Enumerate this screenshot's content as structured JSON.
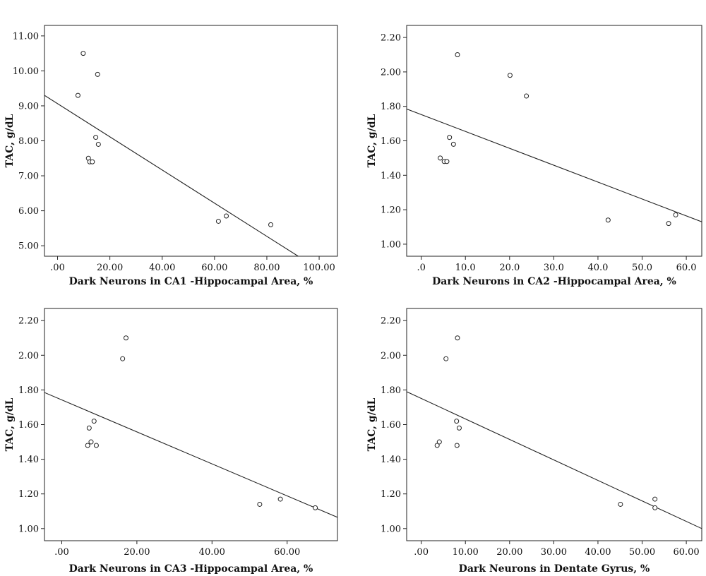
{
  "chart_data": [
    {
      "type": "scatter",
      "xlabel": "Dark Neurons in CA1 -Hippocampal Area, %",
      "ylabel": "TAC, g/dL",
      "xlim": [
        -5,
        107
      ],
      "ylim": [
        4.7,
        11.3
      ],
      "xticks": [
        0,
        20,
        40,
        60,
        80,
        100
      ],
      "xtick_labels": [
        ".00",
        "20.00",
        "40.00",
        "60.00",
        "80.00",
        "100.00"
      ],
      "yticks": [
        5,
        6,
        7,
        8,
        9,
        10,
        11
      ],
      "ytick_labels": [
        "5.00",
        "6.00",
        "7.00",
        "8.00",
        "9.00",
        "10.00",
        "11.00"
      ],
      "points": [
        {
          "x": 7.8,
          "y": 9.3
        },
        {
          "x": 9.8,
          "y": 10.5
        },
        {
          "x": 11.8,
          "y": 7.5
        },
        {
          "x": 12.3,
          "y": 7.4
        },
        {
          "x": 13.3,
          "y": 7.4
        },
        {
          "x": 14.6,
          "y": 8.1
        },
        {
          "x": 15.3,
          "y": 9.9
        },
        {
          "x": 15.6,
          "y": 7.9
        },
        {
          "x": 61.5,
          "y": 5.7
        },
        {
          "x": 64.5,
          "y": 5.85
        },
        {
          "x": 81.5,
          "y": 5.6
        }
      ],
      "fit_line": {
        "x1": -5,
        "y1": 9.3,
        "x2": 92,
        "y2": 4.7
      }
    },
    {
      "type": "scatter",
      "xlabel": "Dark Neurons in CA2 -Hippocampal Area, %",
      "ylabel": "TAC, g/dL",
      "xlim": [
        -3.3,
        63.5
      ],
      "ylim": [
        0.93,
        2.27
      ],
      "xticks": [
        0,
        10,
        20,
        30,
        40,
        50,
        60
      ],
      "xtick_labels": [
        ".0",
        "10.0",
        "20.0",
        "30.0",
        "40.0",
        "50.0",
        "60.0"
      ],
      "yticks": [
        1.0,
        1.2,
        1.4,
        1.6,
        1.8,
        2.0,
        2.2
      ],
      "ytick_labels": [
        "1.00",
        "1.20",
        "1.40",
        "1.60",
        "1.80",
        "2.00",
        "2.20"
      ],
      "points": [
        {
          "x": 4.3,
          "y": 1.5
        },
        {
          "x": 5.2,
          "y": 1.48
        },
        {
          "x": 5.8,
          "y": 1.48
        },
        {
          "x": 6.4,
          "y": 1.62
        },
        {
          "x": 7.3,
          "y": 1.58
        },
        {
          "x": 8.2,
          "y": 2.1
        },
        {
          "x": 20.1,
          "y": 1.98
        },
        {
          "x": 23.8,
          "y": 1.86
        },
        {
          "x": 42.3,
          "y": 1.14
        },
        {
          "x": 56.0,
          "y": 1.12
        },
        {
          "x": 57.6,
          "y": 1.17
        }
      ],
      "fit_line": {
        "x1": -3.3,
        "y1": 1.785,
        "x2": 63.5,
        "y2": 1.13
      }
    },
    {
      "type": "scatter",
      "xlabel": "Dark Neurons in CA3 -Hippocampal Area, %",
      "ylabel": "TAC, g/dL",
      "xlim": [
        -4.6,
        73.4
      ],
      "ylim": [
        0.93,
        2.27
      ],
      "xticks": [
        0,
        20,
        40,
        60
      ],
      "xtick_labels": [
        ".00",
        "20.00",
        "40.00",
        "60.00"
      ],
      "yticks": [
        1.0,
        1.2,
        1.4,
        1.6,
        1.8,
        2.0,
        2.2
      ],
      "ytick_labels": [
        "1.00",
        "1.20",
        "1.40",
        "1.60",
        "1.80",
        "2.00",
        "2.20"
      ],
      "points": [
        {
          "x": 6.9,
          "y": 1.48
        },
        {
          "x": 7.3,
          "y": 1.58
        },
        {
          "x": 7.8,
          "y": 1.5
        },
        {
          "x": 8.6,
          "y": 1.62
        },
        {
          "x": 9.2,
          "y": 1.48
        },
        {
          "x": 16.2,
          "y": 1.98
        },
        {
          "x": 17.1,
          "y": 2.1
        },
        {
          "x": 52.7,
          "y": 1.14
        },
        {
          "x": 58.2,
          "y": 1.17
        },
        {
          "x": 67.5,
          "y": 1.12
        }
      ],
      "fit_line": {
        "x1": -4.6,
        "y1": 1.785,
        "x2": 73.4,
        "y2": 1.065
      }
    },
    {
      "type": "scatter",
      "xlabel": "Dark Neurons in Dentate Gyrus, %",
      "ylabel": "TAC, g/dL",
      "xlim": [
        -3.3,
        63.5
      ],
      "ylim": [
        0.93,
        2.27
      ],
      "xticks": [
        0,
        10,
        20,
        30,
        40,
        50,
        60
      ],
      "xtick_labels": [
        ".00",
        "10.00",
        "20.00",
        "30.00",
        "40.00",
        "50.00",
        "60.00"
      ],
      "yticks": [
        1.0,
        1.2,
        1.4,
        1.6,
        1.8,
        2.0,
        2.2
      ],
      "ytick_labels": [
        "1.00",
        "1.20",
        "1.40",
        "1.60",
        "1.80",
        "2.00",
        "2.20"
      ],
      "points": [
        {
          "x": 3.6,
          "y": 1.48
        },
        {
          "x": 4.1,
          "y": 1.5
        },
        {
          "x": 5.6,
          "y": 1.98
        },
        {
          "x": 8.0,
          "y": 1.62
        },
        {
          "x": 8.1,
          "y": 1.48
        },
        {
          "x": 8.2,
          "y": 2.1
        },
        {
          "x": 8.6,
          "y": 1.58
        },
        {
          "x": 45.1,
          "y": 1.14
        },
        {
          "x": 52.9,
          "y": 1.17
        },
        {
          "x": 52.9,
          "y": 1.12
        }
      ],
      "fit_line": {
        "x1": -3.3,
        "y1": 1.79,
        "x2": 63.5,
        "y2": 1.0
      }
    }
  ]
}
